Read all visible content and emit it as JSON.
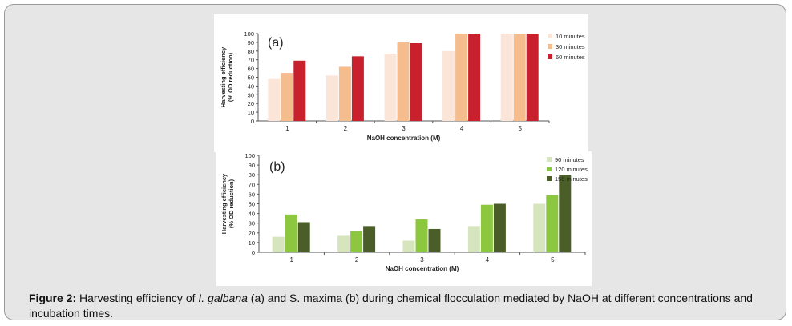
{
  "caption": {
    "label": "Figure 2:",
    "text_1": " Harvesting efficiency of ",
    "species_a": "I. galbana",
    "text_2": " (a) and S. maxima (b) during chemical flocculation mediated by NaOH at different concentrations and incubation times."
  },
  "chart_data": [
    {
      "type": "bar",
      "panel_label": "(a)",
      "categories": [
        "1",
        "2",
        "3",
        "4",
        "5"
      ],
      "xlabel": "NaOH concentration (M)",
      "ylabel_line1": "Harvesting efficiency",
      "ylabel_line2": "(% OD reduction)",
      "ylim": [
        0,
        100
      ],
      "yticks": [
        0,
        10,
        20,
        30,
        40,
        50,
        60,
        70,
        80,
        90,
        100
      ],
      "grid": false,
      "legend_position": "right",
      "series": [
        {
          "name": "10 minutes",
          "color": "#fbe5d9",
          "values": [
            48,
            52,
            77,
            80,
            100
          ]
        },
        {
          "name": "30 minutes",
          "color": "#f5bc8e",
          "values": [
            55,
            62,
            90,
            100,
            100
          ]
        },
        {
          "name": "60 minutes",
          "color": "#c8202c",
          "values": [
            69,
            74,
            89,
            100,
            100
          ]
        }
      ]
    },
    {
      "type": "bar",
      "panel_label": "(b)",
      "categories": [
        "1",
        "2",
        "3",
        "4",
        "5"
      ],
      "xlabel": "NaOH concentration (M)",
      "ylabel_line1": "Harvesting efficiency",
      "ylabel_line2": "(% OD reduction)",
      "ylim": [
        0,
        100
      ],
      "yticks": [
        0,
        10,
        20,
        30,
        40,
        50,
        60,
        70,
        80,
        90,
        100
      ],
      "grid": false,
      "legend_position": "right",
      "series": [
        {
          "name": "90 minutes",
          "color": "#d6e5bd",
          "values": [
            16,
            17,
            12,
            27,
            50
          ]
        },
        {
          "name": "120 minutes",
          "color": "#8dc63f",
          "values": [
            39,
            22,
            34,
            49,
            59
          ]
        },
        {
          "name": "150 minutes",
          "color": "#4b5e2a",
          "values": [
            31,
            27,
            24,
            50,
            80
          ]
        }
      ]
    }
  ]
}
